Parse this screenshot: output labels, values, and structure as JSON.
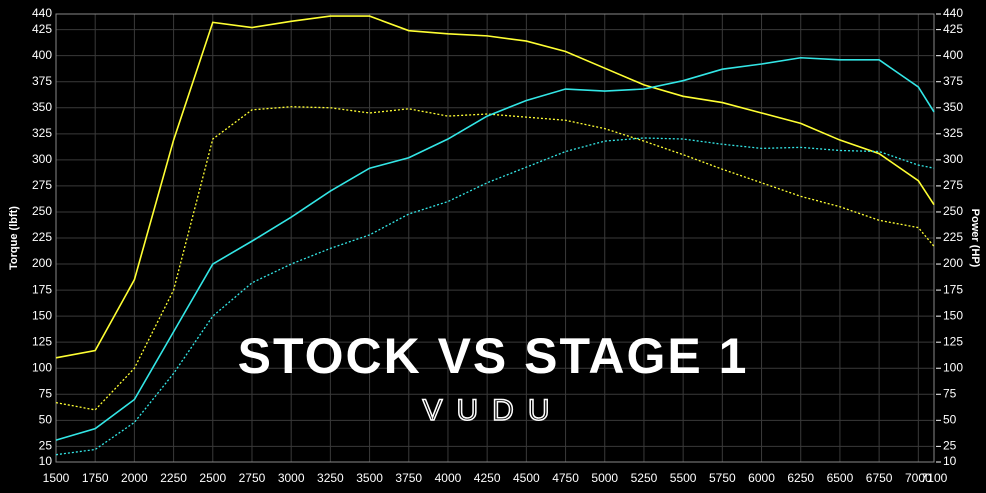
{
  "chart_data": {
    "type": "line",
    "title": "STOCK VS STAGE 1",
    "subtitle": "VUDU",
    "y_label": "Torque (lbft)",
    "y2_label": "Power (HP)",
    "x": [
      1500,
      1750,
      2000,
      2250,
      2500,
      2750,
      3000,
      3250,
      3500,
      3750,
      4000,
      4250,
      4500,
      4750,
      5000,
      5250,
      5500,
      5750,
      6000,
      6250,
      6500,
      6750,
      7000,
      7100
    ],
    "series": [
      {
        "color": "#ffff33",
        "dashed": false,
        "values": [
          110,
          117,
          185,
          319,
          432,
          427,
          433,
          438,
          438,
          424,
          421,
          419,
          414,
          404,
          388,
          372,
          361,
          355,
          345,
          335,
          319,
          306,
          280,
          257
        ]
      },
      {
        "color": "#ffff33",
        "dashed": true,
        "values": [
          67,
          60,
          100,
          175,
          320,
          348,
          351,
          350,
          345,
          349,
          342,
          344,
          341,
          338,
          330,
          318,
          305,
          291,
          278,
          265,
          255,
          242,
          235,
          217
        ]
      },
      {
        "color": "#33e6e6",
        "dashed": false,
        "axis": "y2",
        "values": [
          31,
          42,
          70,
          135,
          200,
          222,
          245,
          270,
          292,
          302,
          320,
          342,
          357,
          368,
          366,
          368,
          376,
          387,
          392,
          398,
          396,
          396,
          370,
          346
        ]
      },
      {
        "color": "#33e6e6",
        "dashed": true,
        "axis": "y2",
        "values": [
          17,
          22,
          48,
          95,
          150,
          182,
          200,
          215,
          228,
          248,
          260,
          278,
          293,
          308,
          318,
          321,
          320,
          315,
          311,
          312,
          309,
          308,
          295,
          292
        ]
      }
    ],
    "xlim": [
      1500,
      7100
    ],
    "xticks": [
      1500,
      1750,
      2000,
      2250,
      2500,
      2750,
      3000,
      3250,
      3500,
      3750,
      4000,
      4250,
      4500,
      4750,
      5000,
      5250,
      5500,
      5750,
      6000,
      6250,
      6500,
      6750,
      7000,
      7100
    ],
    "ylim": [
      10,
      440
    ],
    "yticks": [
      10,
      25,
      50,
      75,
      100,
      125,
      150,
      175,
      200,
      225,
      250,
      275,
      300,
      325,
      350,
      375,
      400,
      425,
      440
    ],
    "y2lim": [
      10,
      440
    ],
    "y2ticks": [
      10,
      25,
      50,
      75,
      100,
      125,
      150,
      175,
      200,
      225,
      250,
      275,
      300,
      325,
      350,
      375,
      400,
      425,
      440
    ],
    "grid": true
  }
}
